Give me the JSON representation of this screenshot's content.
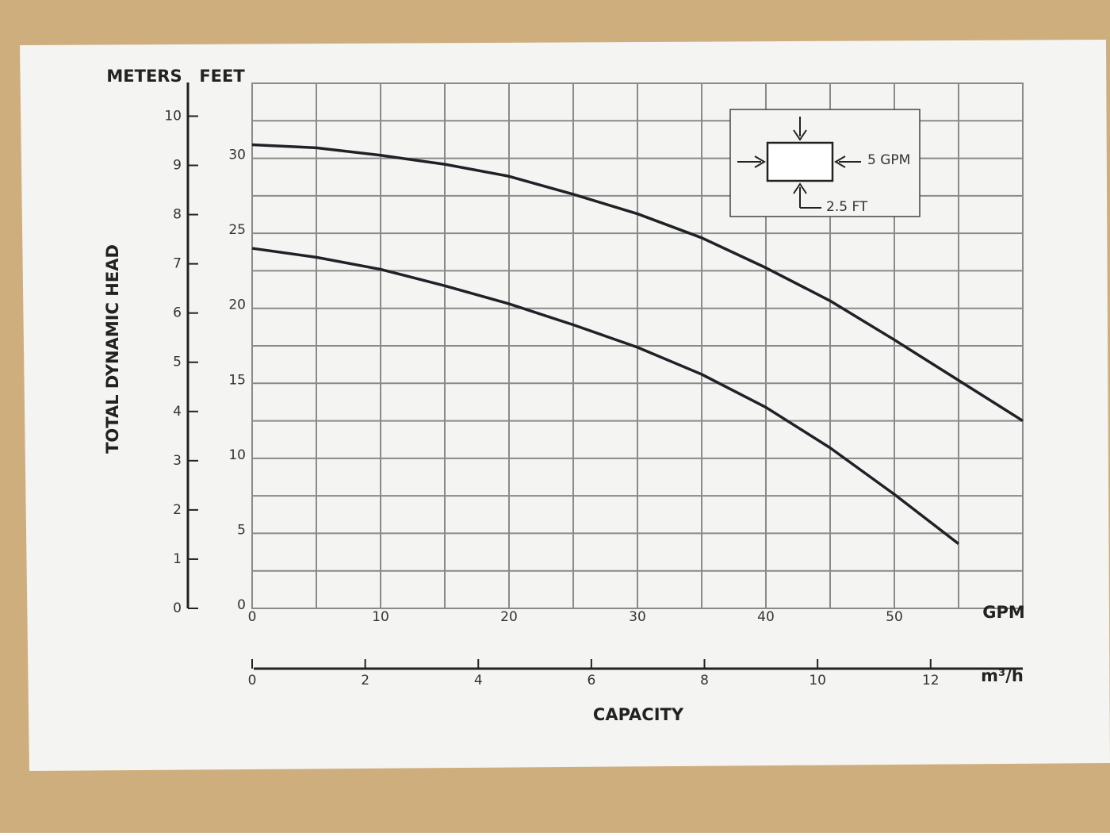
{
  "chart_data": {
    "type": "line",
    "y_label": "TOTAL DYNAMIC HEAD",
    "x_label": "CAPACITY",
    "y_unit": "FEET",
    "y2_unit": "METERS",
    "x_unit": "GPM",
    "x2_unit": "m³/h",
    "x": [
      0,
      5,
      10,
      15,
      20,
      25,
      30,
      35,
      40,
      45,
      50,
      55,
      60
    ],
    "xlim": [
      0,
      60
    ],
    "xticks": [
      0,
      10,
      20,
      30,
      40,
      50
    ],
    "x2lim": [
      0,
      13.63
    ],
    "x2ticks": [
      0,
      2,
      4,
      6,
      8,
      10,
      12
    ],
    "ylim": [
      0,
      35
    ],
    "yticks": [
      0,
      5,
      10,
      15,
      20,
      25,
      30
    ],
    "y2lim": [
      0,
      10.668
    ],
    "y2ticks": [
      0,
      1,
      2,
      3,
      4,
      5,
      6,
      7,
      8,
      9,
      10
    ],
    "grid": true,
    "xgrid": [
      0,
      5,
      10,
      15,
      20,
      25,
      30,
      35,
      40,
      45,
      50,
      55,
      60
    ],
    "ygrid": [
      0,
      2.5,
      5,
      7.5,
      10,
      12.5,
      15,
      17.5,
      20,
      22.5,
      25,
      27.5,
      30,
      32.5,
      35
    ],
    "series": [
      {
        "color": "#1e2226",
        "values": [
          30.9,
          30.7,
          30.2,
          29.6,
          28.8,
          27.6,
          26.3,
          24.7,
          22.7,
          20.5,
          17.9,
          15.2,
          12.5
        ]
      },
      {
        "color": "#1e2226",
        "values": [
          24.0,
          23.4,
          22.6,
          21.5,
          20.3,
          18.9,
          17.4,
          15.6,
          13.4,
          10.7,
          7.6,
          4.3,
          null
        ]
      }
    ],
    "annotations": [
      "5 GPM",
      "2.5 FT"
    ]
  }
}
